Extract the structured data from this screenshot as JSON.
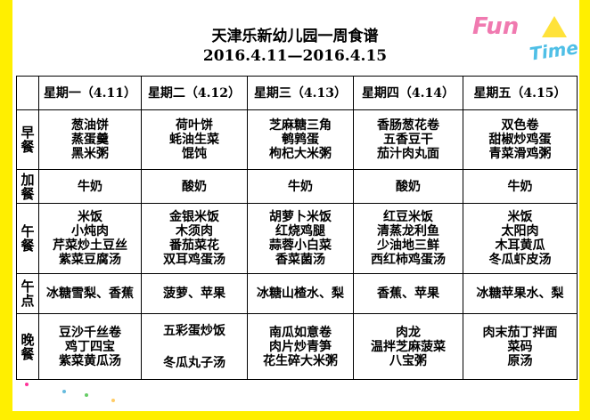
{
  "title": "天津乐新幼儿园一周食谱",
  "date_range": "2016.4.11—2016.4.15",
  "logo_text": {
    "fun": "Fun",
    "time": "Time"
  },
  "days": [
    "星期一（4.11）",
    "星期二（4.12）",
    "星期三（4.13）",
    "星期四（4.14）",
    "星期五（4.15）"
  ],
  "meals": [
    {
      "label": "早餐",
      "items": [
        [
          "葱油饼",
          "蒸蛋羹",
          "黑米粥"
        ],
        [
          "荷叶饼",
          "蚝油生菜",
          "馄饨"
        ],
        [
          "芝麻糖三角",
          "鹌鹑蛋",
          "枸杞大米粥"
        ],
        [
          "香肠葱花卷",
          "五香豆干",
          "茄汁肉丸面"
        ],
        [
          "双色卷",
          "甜椒炒鸡蛋",
          "青菜滑鸡粥"
        ]
      ]
    },
    {
      "label": "加餐",
      "items": [
        [
          "牛奶"
        ],
        [
          "酸奶"
        ],
        [
          "牛奶"
        ],
        [
          "酸奶"
        ],
        [
          "牛奶"
        ]
      ]
    },
    {
      "label": "午餐",
      "items": [
        [
          "米饭",
          "小炖肉",
          "芹菜炒土豆丝",
          "紫菜豆腐汤"
        ],
        [
          "金银米饭",
          "木须肉",
          "番茄菜花",
          "双耳鸡蛋汤"
        ],
        [
          "胡萝卜米饭",
          "红烧鸡腿",
          "蒜蓉小白菜",
          "香菜菌汤"
        ],
        [
          "红豆米饭",
          "清蒸龙利鱼",
          "少油地三鲜",
          "西红柿鸡蛋汤"
        ],
        [
          "米饭",
          "太阳肉",
          "木耳黄瓜",
          "冬瓜虾皮汤"
        ]
      ]
    },
    {
      "label": "午点",
      "items": [
        [
          "冰糖雪梨、香蕉"
        ],
        [
          "菠萝、苹果"
        ],
        [
          "冰糖山楂水、梨"
        ],
        [
          "香蕉、苹果"
        ],
        [
          "冰糖苹果水、梨"
        ]
      ]
    },
    {
      "label": "晚餐",
      "items": [
        [
          "豆沙千丝卷",
          "鸡丁四宝",
          "紫菜黄瓜汤"
        ],
        [
          "五彩蛋炒饭",
          "",
          "冬瓜丸子汤"
        ],
        [
          "南瓜如意卷",
          "肉片炒青笋",
          "花生碎大米粥"
        ],
        [
          "肉龙",
          "温拌芝麻菠菜",
          "八宝粥"
        ],
        [
          "肉末茄丁拌面",
          "菜码",
          "原汤"
        ]
      ]
    }
  ],
  "colors": {
    "border": "#ffef00",
    "logo_pink": "#f07ab0",
    "logo_blue": "#4fbfe6"
  }
}
